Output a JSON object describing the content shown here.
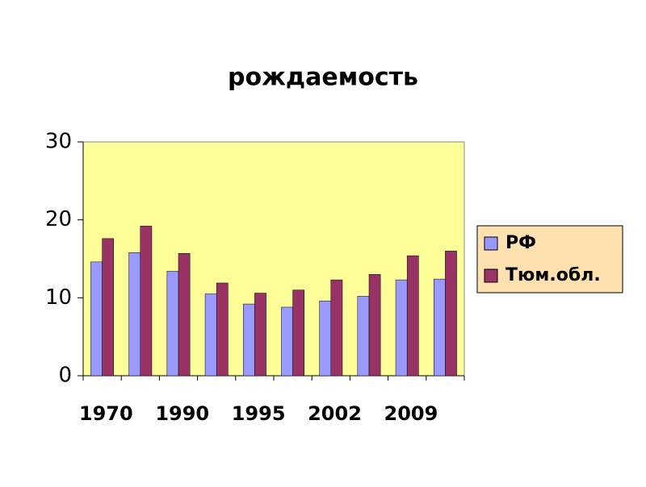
{
  "chart_data": {
    "type": "bar",
    "title": "рождаемость",
    "categories": [
      "1970",
      null,
      "1990",
      null,
      "1995",
      null,
      "2002",
      null,
      "2009",
      null
    ],
    "series": [
      {
        "name": "РФ",
        "color": "#9999ff",
        "values": [
          14.6,
          15.8,
          13.4,
          10.5,
          9.2,
          8.8,
          9.6,
          10.2,
          12.3,
          12.4
        ]
      },
      {
        "name": "Тюм.обл.",
        "color": "#993366",
        "values": [
          17.6,
          19.2,
          15.7,
          11.9,
          10.6,
          11.0,
          12.3,
          13.0,
          15.4,
          16.0
        ]
      }
    ],
    "ylim": [
      0,
      30
    ],
    "yticks": [
      0,
      10,
      20,
      30
    ],
    "plot_background": "#ffff99",
    "legend": "right"
  }
}
